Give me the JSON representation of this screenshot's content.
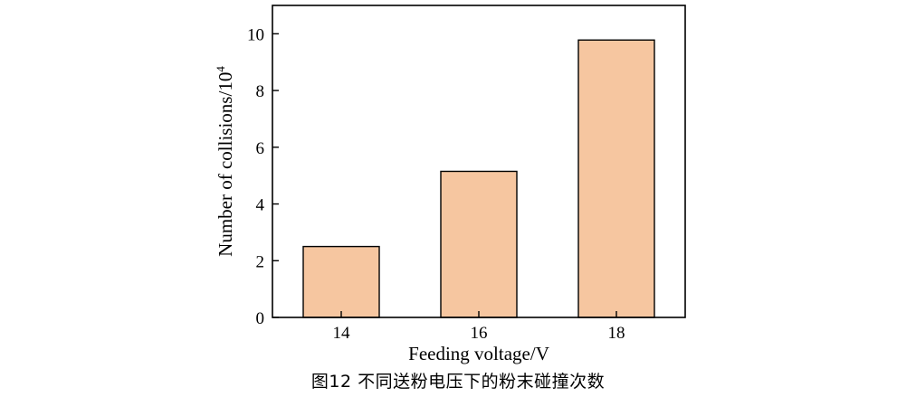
{
  "caption": "图12 不同送粉电压下的粉末碰撞次数",
  "chart_data": {
    "type": "bar",
    "categories": [
      "14",
      "16",
      "18"
    ],
    "values": [
      2.5,
      5.15,
      9.78
    ],
    "xlabel": "Feeding voltage/V",
    "ylabel_base": "Number of collisions/10",
    "ylabel_exponent": "4",
    "ylim": [
      0,
      11
    ],
    "yticks": [
      0,
      2,
      4,
      6,
      8,
      10
    ],
    "bar_color": "#f6c6a0",
    "grid": false
  }
}
